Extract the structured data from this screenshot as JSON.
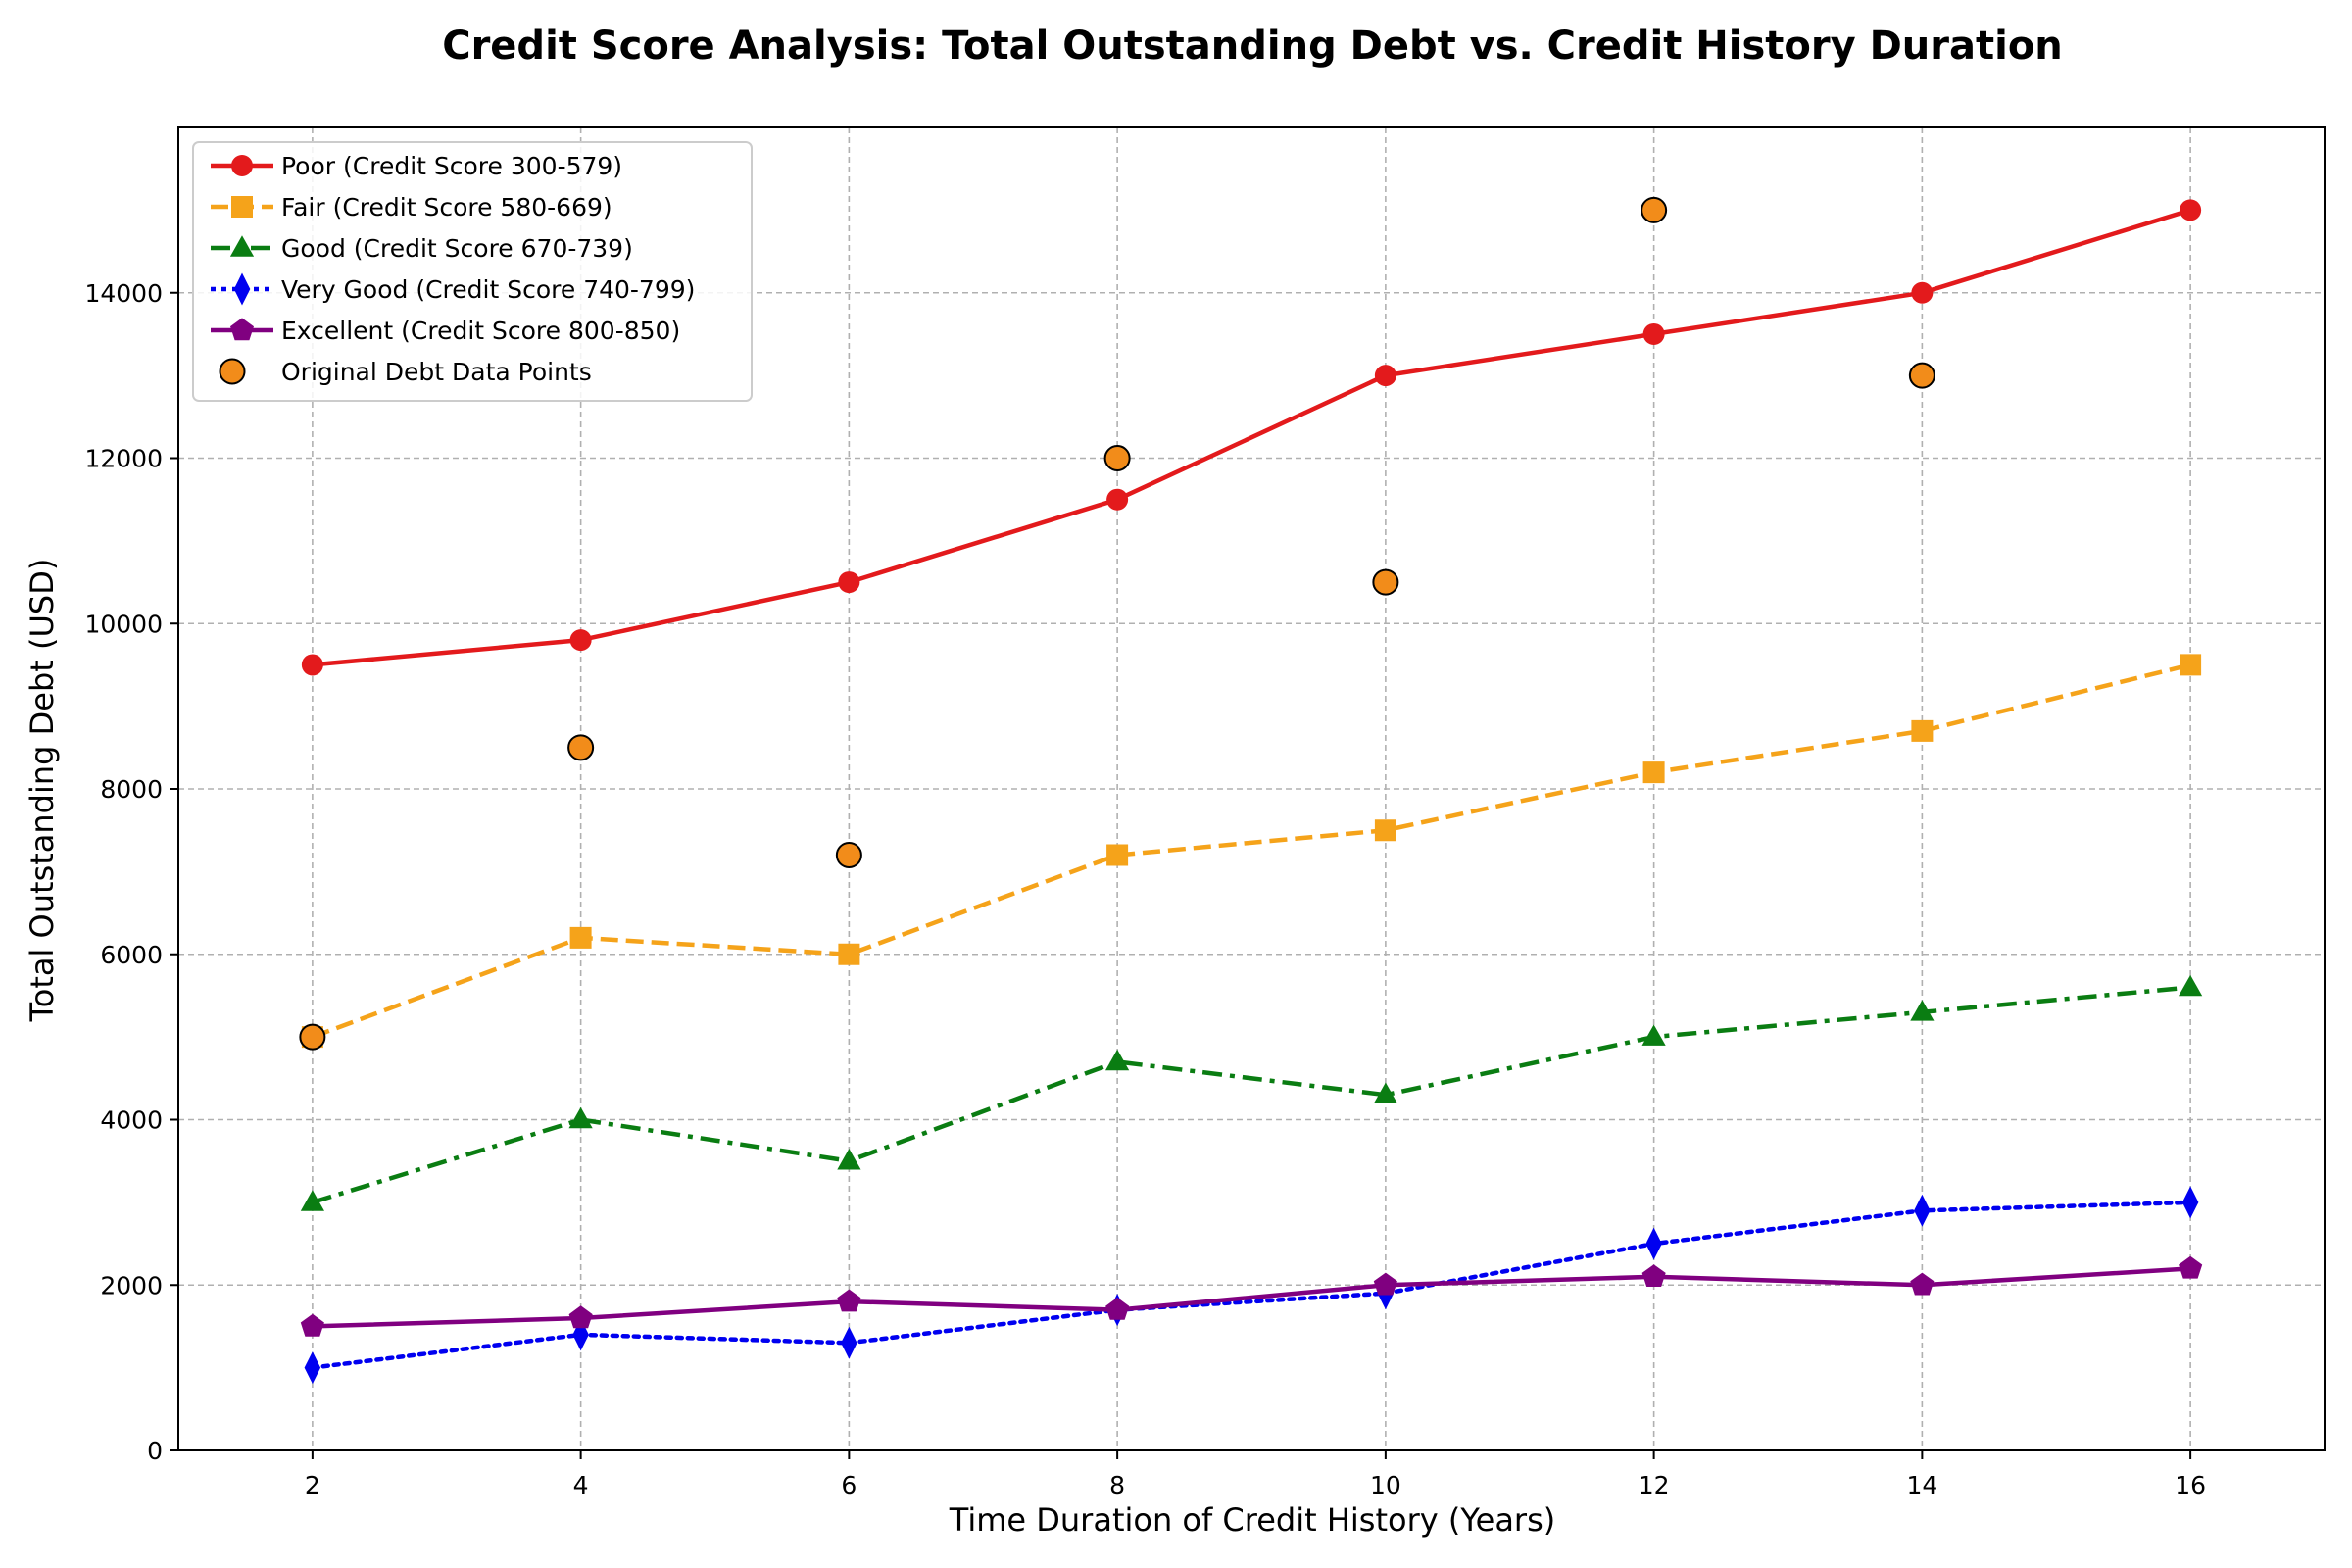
{
  "chart_data": {
    "type": "line",
    "title": "Credit Score Analysis: Total Outstanding Debt vs. Credit History Duration",
    "xlabel": "Time Duration of Credit History (Years)",
    "ylabel": "Total Outstanding Debt (USD)",
    "x": [
      2,
      4,
      6,
      8,
      10,
      12,
      14,
      16
    ],
    "xlim": [
      1,
      17
    ],
    "ylim": [
      0,
      16000
    ],
    "xticks": [
      2,
      4,
      6,
      8,
      10,
      12,
      14,
      16
    ],
    "yticks": [
      0,
      2000,
      4000,
      6000,
      8000,
      10000,
      12000,
      14000
    ],
    "grid": true,
    "legend_position": "top-left",
    "series": [
      {
        "name": "Poor (Credit Score 300-579)",
        "color": "#e31a1c",
        "marker": "circle",
        "dash": "solid",
        "values": [
          9500,
          9800,
          10500,
          11500,
          13000,
          13500,
          14000,
          15000
        ]
      },
      {
        "name": "Fair (Credit Score 580-669)",
        "color": "#f5a31a",
        "marker": "square",
        "dash": "dashed",
        "values": [
          5000,
          6200,
          6000,
          7200,
          7500,
          8200,
          8700,
          9500
        ]
      },
      {
        "name": "Good (Credit Score 670-739)",
        "color": "#0a7d12",
        "marker": "triangle",
        "dash": "dashdot",
        "values": [
          3000,
          4000,
          3500,
          4700,
          4300,
          5000,
          5300,
          5600
        ]
      },
      {
        "name": "Very Good (Credit Score 740-799)",
        "color": "#0000f0",
        "marker": "diamond",
        "dash": "dotted",
        "values": [
          1000,
          1400,
          1300,
          1700,
          1900,
          2500,
          2900,
          3000
        ]
      },
      {
        "name": "Excellent (Credit Score 800-850)",
        "color": "#800080",
        "marker": "pentagon",
        "dash": "solid",
        "values": [
          1500,
          1600,
          1800,
          1700,
          2000,
          2100,
          2000,
          2200
        ]
      }
    ],
    "scatter": {
      "name": "Original Debt Data Points",
      "color": "#f28c1a",
      "edge_color": "#000000",
      "x": [
        2,
        4,
        6,
        8,
        10,
        12,
        14
      ],
      "values": [
        5000,
        8500,
        7200,
        12000,
        10500,
        15000,
        13000
      ]
    }
  }
}
